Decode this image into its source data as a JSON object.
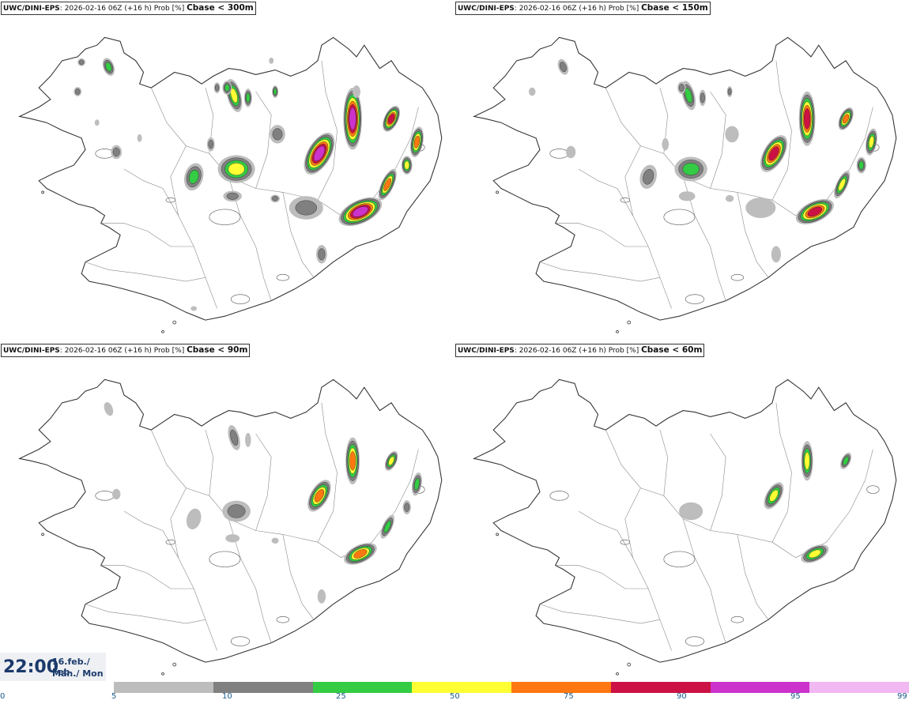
{
  "panels": [
    {
      "source": "UWC/DINI-EPS",
      "run_info": ": 2026-02-16 06Z (+16 h) Prob [%] ",
      "variable": "Cbase < 300m",
      "level": 4
    },
    {
      "source": "UWC/DINI-EPS",
      "run_info": ": 2026-02-16 06Z (+16 h) Prob [%] ",
      "variable": "Cbase < 150m",
      "level": 3
    },
    {
      "source": "UWC/DINI-EPS",
      "run_info": ": 2026-02-16 06Z (+16 h) Prob [%] ",
      "variable": "Cbase < 90m",
      "level": 2
    },
    {
      "source": "UWC/DINI-EPS",
      "run_info": ": 2026-02-16 06Z (+16 h) Prob [%] ",
      "variable": "Cbase < 60m",
      "level": 1
    }
  ],
  "valid_time": {
    "time": "22:00",
    "date_line": "16.feb./ Feb",
    "day_line": "Mán./ Mon"
  },
  "colorbar": {
    "ticks": [
      "0",
      "5",
      "10",
      "25",
      "50",
      "75",
      "90",
      "95",
      "99"
    ],
    "colors": [
      "#bdbdbd",
      "#808080",
      "#33cc44",
      "#ffff33",
      "#ff7711",
      "#cc1144",
      "#cc33cc",
      "#f2b8f2"
    ]
  }
}
